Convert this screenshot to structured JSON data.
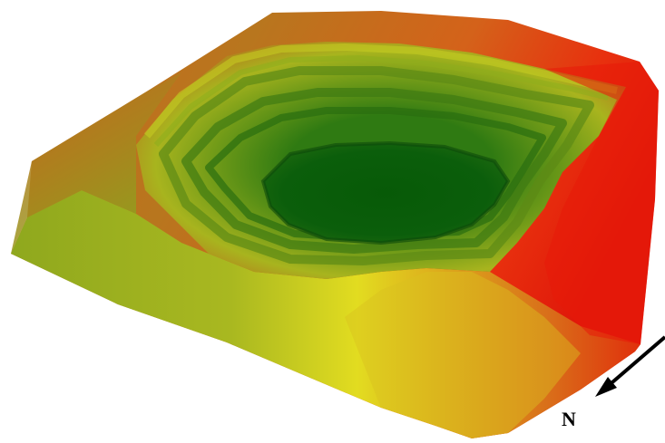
{
  "compass": {
    "label": "N",
    "arrow_icon": "north-arrow-icon"
  },
  "colors": {
    "background": "#ffffff",
    "rim_high": "#e0180a",
    "rim_orange": "#d2581a",
    "mid_yellow": "#c8d21e",
    "mid_green": "#7aa61c",
    "pit_floor": "#0b5c0b"
  }
}
